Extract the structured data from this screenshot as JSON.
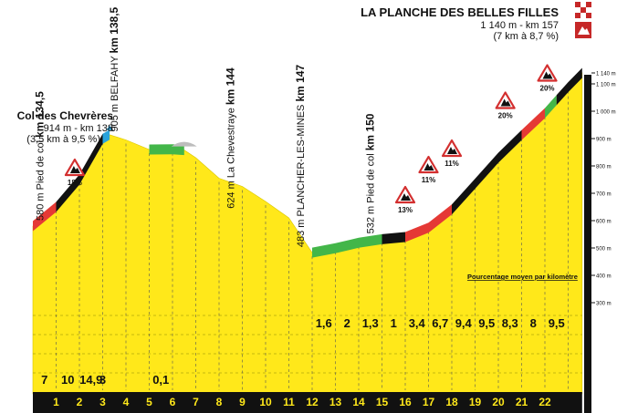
{
  "chart_data": {
    "type": "area",
    "finish": {
      "name": "LA PLANCHE DES BELLES FILLES",
      "line1": "1 140 m - km 157",
      "line2": "(7 km à 8,7 %)"
    },
    "ylim": [
      300,
      1140
    ],
    "y_ticks": [
      {
        "value": 300,
        "label": "300 m"
      },
      {
        "value": 400,
        "label": "400 m"
      },
      {
        "value": 500,
        "label": "500 m"
      },
      {
        "value": 600,
        "label": "600 m"
      },
      {
        "value": 700,
        "label": "700 m"
      },
      {
        "value": 800,
        "label": "800 m"
      },
      {
        "value": 900,
        "label": "900 m"
      },
      {
        "value": 1000,
        "label": "1 000 m"
      },
      {
        "value": 1100,
        "label": "1 100 m"
      },
      {
        "value": 1140,
        "label": "1 140 m"
      }
    ],
    "km_ticks": [
      "1",
      "2",
      "3",
      "4",
      "5",
      "6",
      "7",
      "8",
      "9",
      "10",
      "11",
      "12",
      "13",
      "14",
      "15",
      "16",
      "17",
      "18",
      "19",
      "20",
      "21",
      "22"
    ],
    "km_percentages": [
      {
        "km": 1,
        "value": "7"
      },
      {
        "km": 2,
        "value": "10"
      },
      {
        "km": 3,
        "value": "14,9"
      },
      {
        "km": 3.5,
        "value": "3"
      },
      {
        "km": 6,
        "value": "0,1"
      },
      {
        "km": 13,
        "value": "1,6"
      },
      {
        "km": 14,
        "value": "2"
      },
      {
        "km": 15,
        "value": "1,3"
      },
      {
        "km": 16,
        "value": "1"
      },
      {
        "km": 17,
        "value": "3,4"
      },
      {
        "km": 18,
        "value": "6,7"
      },
      {
        "km": 19,
        "value": "9,4"
      },
      {
        "km": 20,
        "value": "9,5"
      },
      {
        "km": 21,
        "value": "8,3"
      },
      {
        "km": 22,
        "value": "8"
      },
      {
        "km": 23,
        "value": "9,5"
      }
    ],
    "profile": [
      {
        "x": 0,
        "y": 580
      },
      {
        "x": 1,
        "y": 650
      },
      {
        "x": 2,
        "y": 750
      },
      {
        "x": 3,
        "y": 899
      },
      {
        "x": 3.3,
        "y": 914
      },
      {
        "x": 4,
        "y": 895
      },
      {
        "x": 5,
        "y": 860
      },
      {
        "x": 6,
        "y": 861
      },
      {
        "x": 6.5,
        "y": 858
      },
      {
        "x": 7,
        "y": 830
      },
      {
        "x": 8,
        "y": 755
      },
      {
        "x": 9,
        "y": 725
      },
      {
        "x": 10,
        "y": 670
      },
      {
        "x": 11,
        "y": 610
      },
      {
        "x": 12,
        "y": 483
      },
      {
        "x": 13,
        "y": 499
      },
      {
        "x": 14,
        "y": 519
      },
      {
        "x": 15,
        "y": 532
      },
      {
        "x": 16,
        "y": 540
      },
      {
        "x": 17,
        "y": 574
      },
      {
        "x": 18,
        "y": 641
      },
      {
        "x": 19,
        "y": 735
      },
      {
        "x": 20,
        "y": 830
      },
      {
        "x": 21,
        "y": 913
      },
      {
        "x": 22,
        "y": 993
      },
      {
        "x": 23,
        "y": 1088
      },
      {
        "x": 23.6,
        "y": 1140
      }
    ],
    "segments": [
      {
        "from": 0,
        "to": 1,
        "color": "#e53935"
      },
      {
        "from": 1,
        "to": 3,
        "color": "#111111"
      },
      {
        "from": 3,
        "to": 3.3,
        "color": "#29a3dc"
      },
      {
        "from": 5,
        "to": 6.5,
        "color": "#43b649"
      },
      {
        "from": 12,
        "to": 13,
        "color": "#43b649"
      },
      {
        "from": 13,
        "to": 15,
        "color": "#43b649"
      },
      {
        "from": 15,
        "to": 16,
        "color": "#111111"
      },
      {
        "from": 16,
        "to": 18,
        "color": "#e53935"
      },
      {
        "from": 18,
        "to": 21,
        "color": "#111111"
      },
      {
        "from": 21,
        "to": 22,
        "color": "#e53935"
      },
      {
        "from": 22,
        "to": 22.5,
        "color": "#43b649"
      },
      {
        "from": 22.5,
        "to": 23.6,
        "color": "#111111"
      }
    ],
    "climbs": [
      {
        "x": 1.8,
        "y": 790,
        "pct": "18%"
      },
      {
        "x": 16,
        "y": 690,
        "pct": "13%"
      },
      {
        "x": 17,
        "y": 800,
        "pct": "11%"
      },
      {
        "x": 18,
        "y": 860,
        "pct": "11%"
      },
      {
        "x": 20.3,
        "y": 1035,
        "pct": "20%"
      },
      {
        "x": 22.1,
        "y": 1135,
        "pct": "20%"
      }
    ],
    "col_chevreres": {
      "name": "Col des Chevrères",
      "line1": "914 m - km 138",
      "line2": "(3,5 km à 9,5 %)"
    },
    "vertical_labels": [
      {
        "x": 1,
        "y": 580,
        "alt": "580 m Pied de col",
        "km": "km 134,5"
      },
      {
        "x": 4.2,
        "y": 905,
        "alt": "905 m BELFAHY",
        "km": "km 138,5"
      },
      {
        "x": 9.2,
        "y": 624,
        "alt": "624 m La Chevestraye",
        "km": "km 144"
      },
      {
        "x": 12.2,
        "y": 483,
        "alt": "483 m PLANCHER-LES-MINES",
        "km": "km 147"
      },
      {
        "x": 15.2,
        "y": 532,
        "alt": "532 m Pied de col",
        "km": "km 150"
      }
    ],
    "legend_note": "Pourcentage moyen par kilomètre"
  }
}
